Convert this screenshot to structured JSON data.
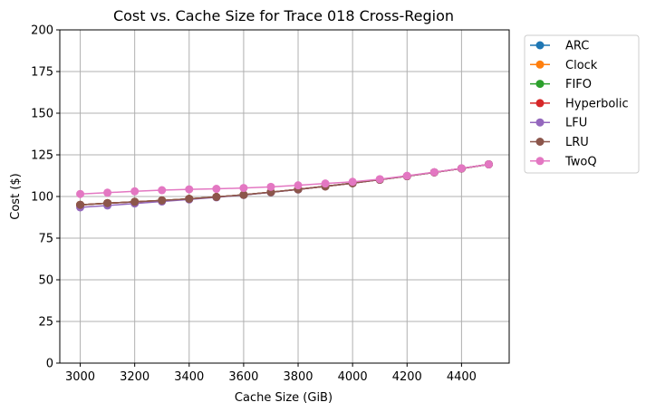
{
  "chart_data": {
    "type": "line",
    "title": "Cost vs. Cache Size for Trace 018 Cross-Region",
    "xlabel": "Cache Size (GiB)",
    "ylabel": "Cost ($)",
    "xlim": [
      2925,
      4575
    ],
    "ylim": [
      0,
      200
    ],
    "xticks": [
      3000,
      3200,
      3400,
      3600,
      3800,
      4000,
      4200,
      4400
    ],
    "yticks": [
      0,
      25,
      50,
      75,
      100,
      125,
      150,
      175,
      200
    ],
    "grid": true,
    "legend_position": "outside-right-top",
    "x": [
      3000,
      3100,
      3200,
      3300,
      3400,
      3500,
      3600,
      3700,
      3800,
      3900,
      4000,
      4100,
      4200,
      4300,
      4400,
      4500
    ],
    "series": [
      {
        "name": "ARC",
        "color": "#1f77b4",
        "values": [
          95,
          96,
          96.8,
          97.6,
          98.6,
          99.7,
          101,
          102.6,
          104.3,
          106.1,
          108,
          110.1,
          112.2,
          114.5,
          116.8,
          119.3
        ]
      },
      {
        "name": "Clock",
        "color": "#ff7f0e",
        "values": [
          95,
          96,
          96.8,
          97.6,
          98.6,
          99.7,
          101,
          102.6,
          104.3,
          106.1,
          108,
          110.1,
          112.2,
          114.5,
          116.8,
          119.3
        ]
      },
      {
        "name": "FIFO",
        "color": "#2ca02c",
        "values": [
          95,
          96,
          96.8,
          97.6,
          98.6,
          99.7,
          101,
          102.6,
          104.3,
          106.1,
          108,
          110.1,
          112.2,
          114.5,
          116.8,
          119.3
        ]
      },
      {
        "name": "Hyperbolic",
        "color": "#d62728",
        "values": [
          95,
          96,
          96.8,
          97.6,
          98.6,
          99.7,
          101,
          102.6,
          104.3,
          106.1,
          108,
          110.1,
          112.2,
          114.5,
          116.8,
          119.3
        ]
      },
      {
        "name": "LFU",
        "color": "#9467bd",
        "values": [
          93.5,
          94.6,
          95.8,
          97,
          98.2,
          99.5,
          100.9,
          102.5,
          104.2,
          106.1,
          108,
          110.1,
          112.2,
          114.5,
          116.8,
          119.3
        ]
      },
      {
        "name": "LRU",
        "color": "#8c564b",
        "values": [
          95,
          96,
          96.8,
          97.6,
          98.6,
          99.7,
          101,
          102.6,
          104.3,
          106.1,
          108,
          110.1,
          112.2,
          114.5,
          116.8,
          119.3
        ]
      },
      {
        "name": "TwoQ",
        "color": "#e377c2",
        "values": [
          101.5,
          102.3,
          103.1,
          103.8,
          104.3,
          104.6,
          105.1,
          105.8,
          106.7,
          107.8,
          108.8,
          110.4,
          112.4,
          114.6,
          116.9,
          119.3
        ]
      }
    ]
  }
}
